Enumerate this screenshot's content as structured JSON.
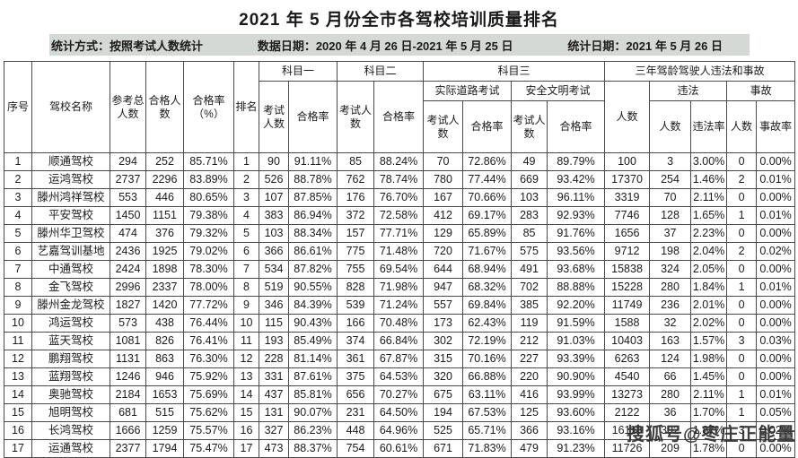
{
  "title": "2021 年 5 月份全市各驾校培训质量排名",
  "meta": {
    "stat_method": "统计方式：按照考试人数统计",
    "data_date": "数据日期：2020 年 4 月 26 日-2021 年 5 月 25 日",
    "stat_date": "统计日期：2021 年 5 月 26 日"
  },
  "watermark": "搜狐号@枣庄正能量",
  "table": {
    "headers": {
      "seq": "序号",
      "school": "驾校名称",
      "total": "参考总人数",
      "passed": "合格人数",
      "pass_rate_pct": "合格率（%）",
      "rank": "排名",
      "subject1": "科目一",
      "subject2": "科目二",
      "subject3": "科目三",
      "three_year": "三年驾龄驾驶人违法和事故",
      "road_test": "实际道路考试",
      "civil_test": "安全文明考试",
      "violation": "违法",
      "accident": "事故",
      "exam_count": "考试人数",
      "pass_rate": "合格率",
      "people": "人数",
      "violation_rate": "违法率",
      "accident_rate": "事故率"
    },
    "rows": [
      [
        "1",
        "顺通驾校",
        "294",
        "252",
        "85.71%",
        "1",
        "90",
        "91.11%",
        "85",
        "88.24%",
        "70",
        "72.86%",
        "49",
        "89.79%",
        "100",
        "3",
        "3.00%",
        "0",
        "0.00%"
      ],
      [
        "2",
        "运鸿驾校",
        "2737",
        "2296",
        "83.89%",
        "2",
        "526",
        "88.78%",
        "762",
        "78.74%",
        "780",
        "77.44%",
        "669",
        "93.42%",
        "17370",
        "254",
        "1.46%",
        "2",
        "0.01%"
      ],
      [
        "3",
        "滕州鸿祥驾校",
        "553",
        "446",
        "80.65%",
        "3",
        "107",
        "87.85%",
        "176",
        "76.70%",
        "167",
        "70.66%",
        "103",
        "96.11%",
        "3319",
        "70",
        "2.11%",
        "0",
        "0.00%"
      ],
      [
        "4",
        "平安驾校",
        "1450",
        "1151",
        "79.38%",
        "4",
        "383",
        "86.94%",
        "372",
        "72.58%",
        "412",
        "69.17%",
        "283",
        "92.93%",
        "7746",
        "128",
        "1.65%",
        "1",
        "0.01%"
      ],
      [
        "5",
        "滕州华卫驾校",
        "474",
        "376",
        "79.32%",
        "5",
        "103",
        "88.34%",
        "157",
        "77.71%",
        "129",
        "65.89%",
        "85",
        "91.76%",
        "1656",
        "37",
        "2.23%",
        "0",
        "0.00%"
      ],
      [
        "6",
        "艺嘉驾训基地",
        "2436",
        "1925",
        "79.02%",
        "6",
        "366",
        "86.61%",
        "775",
        "71.48%",
        "720",
        "71.67%",
        "575",
        "93.56%",
        "9712",
        "198",
        "2.04%",
        "2",
        "0.02%"
      ],
      [
        "7",
        "中通驾校",
        "2424",
        "1898",
        "78.30%",
        "7",
        "534",
        "87.82%",
        "755",
        "69.54%",
        "644",
        "68.94%",
        "491",
        "93.68%",
        "15838",
        "324",
        "2.05%",
        "0",
        "0.00%"
      ],
      [
        "8",
        "金飞驾校",
        "2996",
        "2337",
        "78.00%",
        "8",
        "519",
        "90.55%",
        "828",
        "71.98%",
        "947",
        "68.32%",
        "702",
        "88.88%",
        "15228",
        "280",
        "1.84%",
        "1",
        "0.01%"
      ],
      [
        "9",
        "滕州金龙驾校",
        "1827",
        "1420",
        "77.72%",
        "9",
        "346",
        "84.39%",
        "539",
        "71.24%",
        "557",
        "69.84%",
        "385",
        "92.20%",
        "11749",
        "236",
        "2.01%",
        "0",
        "0.00%"
      ],
      [
        "10",
        "鸿运驾校",
        "573",
        "438",
        "76.44%",
        "10",
        "115",
        "90.43%",
        "166",
        "70.48%",
        "173",
        "62.43%",
        "119",
        "91.59%",
        "1588",
        "32",
        "2.02%",
        "0",
        "0.00%"
      ],
      [
        "11",
        "蓝天驾校",
        "1081",
        "826",
        "76.41%",
        "11",
        "193",
        "85.49%",
        "374",
        "66.84%",
        "302",
        "72.19%",
        "212",
        "91.03%",
        "10403",
        "163",
        "1.57%",
        "3",
        "0.03%"
      ],
      [
        "12",
        "鹏翔驾校",
        "1131",
        "863",
        "76.30%",
        "12",
        "228",
        "81.14%",
        "361",
        "67.87%",
        "315",
        "70.16%",
        "227",
        "93.39%",
        "6263",
        "124",
        "1.98%",
        "0",
        "0.00%"
      ],
      [
        "13",
        "蓝翔驾校",
        "1246",
        "946",
        "75.92%",
        "13",
        "331",
        "87.61%",
        "375",
        "64.53%",
        "320",
        "66.88%",
        "220",
        "90.90%",
        "4540",
        "66",
        "1.45%",
        "0",
        "0.00%"
      ],
      [
        "14",
        "奥驰驾校",
        "2184",
        "1653",
        "75.69%",
        "14",
        "437",
        "85.81%",
        "656",
        "70.27%",
        "675",
        "63.11%",
        "416",
        "93.99%",
        "13273",
        "280",
        "2.11%",
        "1",
        "0.01%"
      ],
      [
        "15",
        "旭明驾校",
        "681",
        "515",
        "75.62%",
        "15",
        "131",
        "90.07%",
        "231",
        "64.50%",
        "194",
        "67.53%",
        "125",
        "93.60%",
        "2122",
        "36",
        "1.70%",
        "1",
        "0.05%"
      ],
      [
        "16",
        "长鸿驾校",
        "1666",
        "1259",
        "75.57%",
        "16",
        "327",
        "86.23%",
        "448",
        "64.96%",
        "525",
        "65.71%",
        "366",
        "93.16%",
        "16118",
        "302",
        "1.87%",
        "3",
        "0.02%"
      ],
      [
        "17",
        "运通驾校",
        "2377",
        "1794",
        "75.47%",
        "17",
        "473",
        "88.37%",
        "754",
        "60.61%",
        "671",
        "71.83%",
        "479",
        "91.23%",
        "11726",
        "209",
        "1.78%",
        "0",
        "0.00%"
      ]
    ]
  }
}
